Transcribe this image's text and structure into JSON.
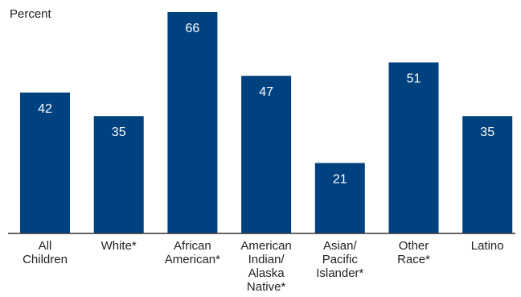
{
  "chart_data": {
    "type": "bar",
    "ylabel": "Percent",
    "categories": [
      [
        "All",
        "Children"
      ],
      [
        "White*"
      ],
      [
        "African",
        "American*"
      ],
      [
        "American",
        "Indian/",
        "Alaska",
        "Native*"
      ],
      [
        "Asian/",
        "Pacific",
        "Islander*"
      ],
      [
        "Other",
        "Race*"
      ],
      [
        "Latino"
      ]
    ],
    "values": [
      42,
      35,
      66,
      47,
      21,
      51,
      35
    ],
    "ylim": [
      0,
      66
    ],
    "grid": false,
    "colors": {
      "bar": "#00427f",
      "axis": "#333333",
      "value_label": "#ffffff",
      "text": "#222222"
    }
  }
}
